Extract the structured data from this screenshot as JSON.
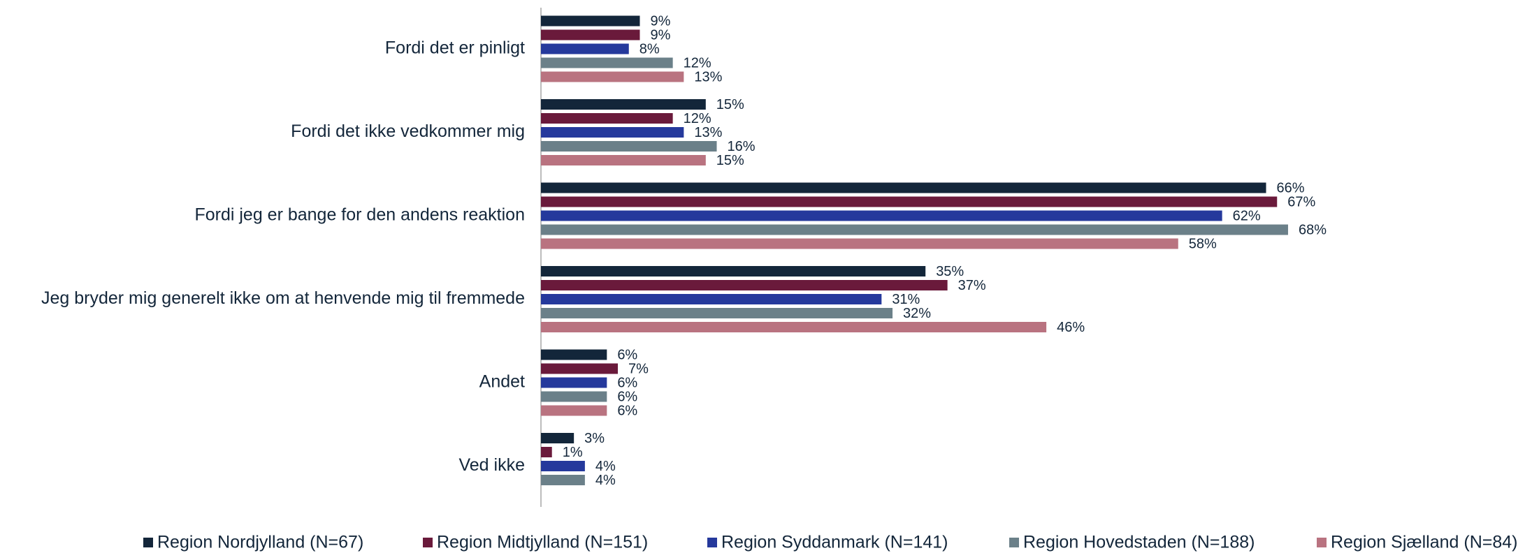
{
  "chart_data": {
    "type": "hbar",
    "categories": [
      "Fordi det er pinligt",
      "Fordi det ikke vedkommer mig",
      "Fordi jeg er bange for den andens reaktion",
      "Jeg bryder mig generelt ikke om at henvende mig til fremmede",
      "Andet",
      "Ved ikke"
    ],
    "series": [
      {
        "name": "Region Nordjylland (N=67)",
        "color": "#13263a",
        "values": [
          9,
          15,
          66,
          35,
          6,
          3
        ],
        "value_labels": [
          "9%",
          "15%",
          "66%",
          "35%",
          "6%",
          "3%"
        ]
      },
      {
        "name": "Region Midtjylland (N=151)",
        "color": "#6a1a3b",
        "values": [
          9,
          12,
          67,
          37,
          7,
          1
        ],
        "value_labels": [
          "9%",
          "12%",
          "67%",
          "37%",
          "7%",
          "1%"
        ]
      },
      {
        "name": "Region Syddanmark (N=141)",
        "color": "#25399c",
        "values": [
          8,
          13,
          62,
          31,
          6,
          4
        ],
        "value_labels": [
          "8%",
          "13%",
          "62%",
          "31%",
          "6%",
          "4%"
        ]
      },
      {
        "name": "Region Hovedstaden (N=188)",
        "color": "#6b8089",
        "values": [
          12,
          16,
          68,
          32,
          6,
          4
        ],
        "value_labels": [
          "12%",
          "16%",
          "68%",
          "32%",
          "6%",
          "4%"
        ]
      },
      {
        "name": "Region Sjælland (N=84)",
        "color": "#b97380",
        "values": [
          13,
          15,
          58,
          46,
          6,
          null
        ],
        "value_labels": [
          "13%",
          "15%",
          "58%",
          "46%",
          "6%",
          null
        ]
      }
    ],
    "legend": "bottom"
  }
}
